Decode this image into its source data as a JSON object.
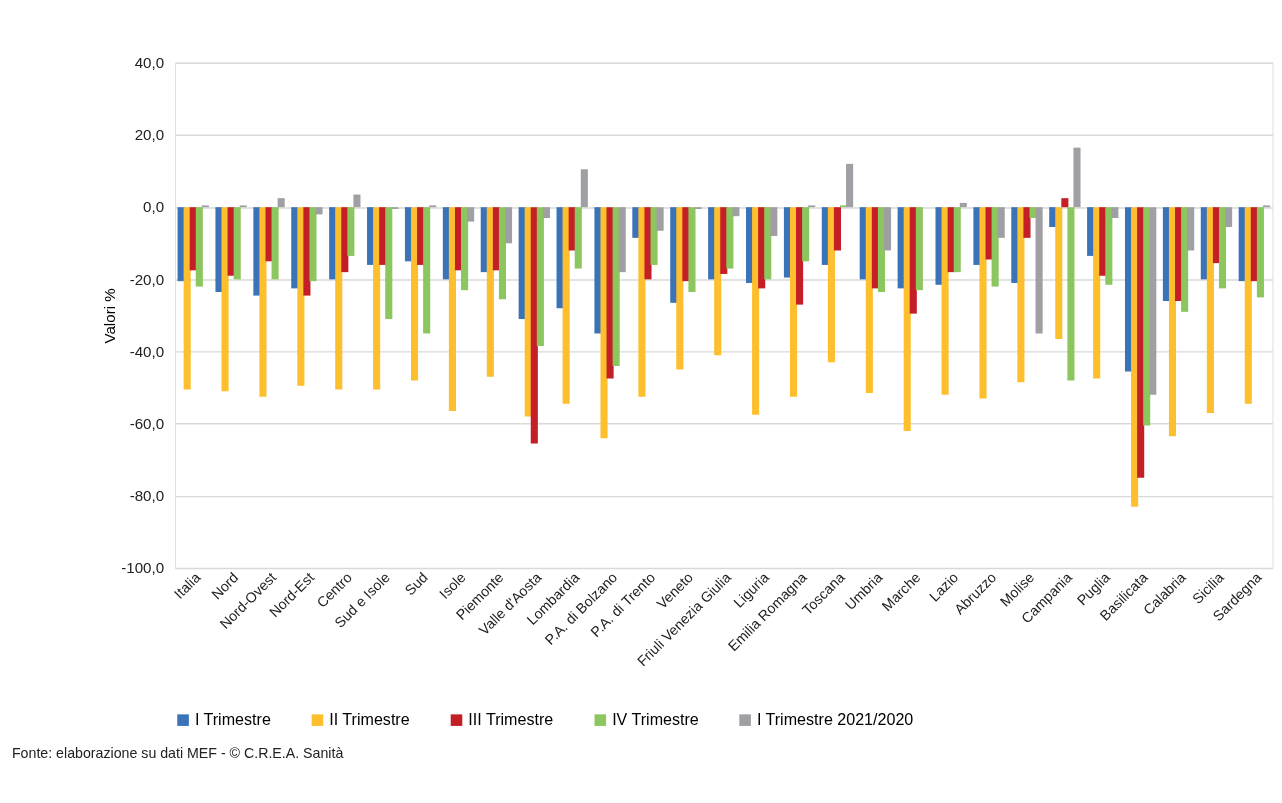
{
  "chart_data": {
    "type": "bar",
    "ylabel": "Valori %",
    "categories": [
      "Italia",
      "Nord",
      "Nord-Ovest",
      "Nord-Est",
      "Centro",
      "Sud e Isole",
      "Sud",
      "Isole",
      "Piemonte",
      "Valle d'Aosta",
      "Lombardia",
      "P.A. di Bolzano",
      "P.A. di Trento",
      "Veneto",
      "Friuli Venezia Giulia",
      "Liguria",
      "Emilia Romagna",
      "Toscana",
      "Umbria",
      "Marche",
      "Lazio",
      "Abruzzo",
      "Molise",
      "Campania",
      "Puglia",
      "Basilicata",
      "Calabria",
      "Sicilia",
      "Sardegna"
    ],
    "series": [
      {
        "name": "I Trimestre",
        "color": "#3b73b9",
        "values": [
          -20.5,
          -23.5,
          -24.5,
          -22.5,
          -20,
          -16,
          -15,
          -20,
          -18,
          -31,
          -28,
          -35,
          -8.5,
          -26.5,
          -20,
          -21,
          -19.5,
          -16,
          -20,
          -22.5,
          -21.5,
          -16,
          -21,
          -5.5,
          -13.5,
          -45.5,
          -26,
          -20,
          -20.5
        ]
      },
      {
        "name": "II Trimestre",
        "color": "#fdbf2d",
        "values": [
          -50.5,
          -51,
          -52.5,
          -49.5,
          -50.5,
          -50.5,
          -48,
          -56.5,
          -47,
          -58,
          -54.5,
          -64,
          -52.5,
          -45,
          -41,
          -57.5,
          -52.5,
          -43,
          -51.5,
          -62,
          -52,
          -53,
          -48.5,
          -36.5,
          -47.5,
          -83,
          -63.5,
          -57,
          -54.5
        ]
      },
      {
        "name": "III Trimestre",
        "color": "#c41f26",
        "values": [
          -17.5,
          -19,
          -15,
          -24.5,
          -18,
          -16,
          -16,
          -17.5,
          -17.5,
          -65.5,
          -12,
          -47.5,
          -20,
          -20.5,
          -18.5,
          -22.5,
          -27,
          -12,
          -22.5,
          -29.5,
          -18,
          -14.5,
          -8.5,
          2.5,
          -19,
          -75,
          -26,
          -15.5,
          -20.5
        ]
      },
      {
        "name": "IV Trimestre",
        "color": "#8cc65f",
        "values": [
          -22,
          -20,
          -20,
          -20.5,
          -13.5,
          -31,
          -35,
          -23,
          -25.5,
          -38.5,
          -17,
          -44,
          -16,
          -23.5,
          -17,
          -20,
          -15,
          0.5,
          -23.5,
          -23,
          -18,
          -22,
          -3,
          -48,
          -21.5,
          -60.5,
          -29,
          -22.5,
          -25
        ]
      },
      {
        "name": "I Trimestre 2021/2020",
        "color": "#a0a0a4",
        "values": [
          0.5,
          0.5,
          2.5,
          -2,
          3.5,
          -0.5,
          0.5,
          -4,
          -10,
          -3,
          10.5,
          -18,
          -6.5,
          -0.5,
          -2.5,
          -8,
          0.5,
          12,
          -12,
          null,
          1.2,
          -8.5,
          -35,
          16.5,
          -3,
          -52,
          -12,
          -5.5,
          0.5
        ]
      }
    ],
    "ylim": [
      -100,
      40
    ],
    "yticks": [
      {
        "value": -100,
        "label": "-100,0"
      },
      {
        "value": -80,
        "label": "-80,0"
      },
      {
        "value": -60,
        "label": "-60,0"
      },
      {
        "value": -40,
        "label": "-40,0"
      },
      {
        "value": -20,
        "label": "-20,0"
      },
      {
        "value": 0,
        "label": "0,0"
      },
      {
        "value": 20,
        "label": "20,0"
      },
      {
        "value": 40,
        "label": "40,0"
      }
    ],
    "grid": "y",
    "legend": "bottom",
    "annotations": [
      "Fonte: elaborazione su dati MEF - © C.R.E.A. Sanità"
    ]
  }
}
